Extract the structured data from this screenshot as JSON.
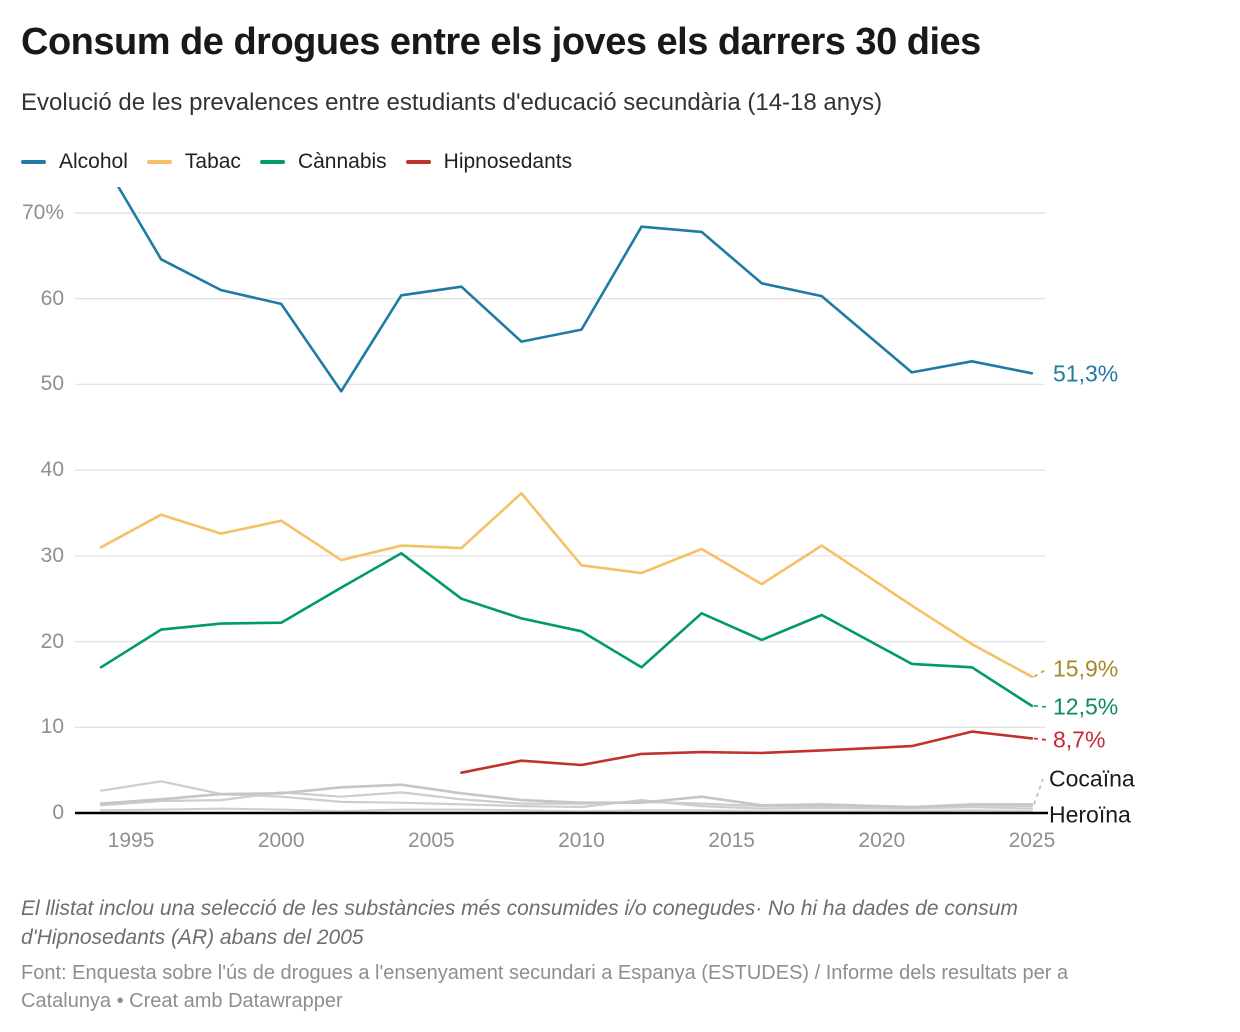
{
  "header": {
    "title": "Consum de drogues entre els joves els darrers 30 dies",
    "subtitle": "Evolució de les prevalences entre estudiants d'educació secundària (14-18 anys)"
  },
  "footer": {
    "note": "El llistat inclou una selecció de les substàncies més consumides i/o conegudes· No hi ha dades de consum\nd'Hipnosedants (AR) abans del 2005",
    "source": "Font: Enquesta sobre l'ús de drogues a l'ensenyament secundari a Espanya (ESTUDES) / Informe dels resultats per a\nCatalunya • Creat amb Datawrapper"
  },
  "colors": {
    "gridline": "#e4e4e4",
    "axis": "#000000",
    "tick_text": "#8f8f8f",
    "title_text": "#191919",
    "subtitle_text": "#333333",
    "footnote_text": "#6e6e6e",
    "source_text": "#8e8e8e"
  },
  "chart_data": {
    "type": "line",
    "title": "Consum de drogues entre els joves els darrers 30 dies",
    "subtitle": "Evolució de les prevalences entre estudiants d'educació secundària (14-18 anys)",
    "unit": "%",
    "x_years": [
      1994,
      1996,
      1998,
      2000,
      2002,
      2004,
      2006,
      2008,
      2010,
      2012,
      2014,
      2016,
      2018,
      2021,
      2023,
      2025
    ],
    "x_ticks": [
      1995,
      2000,
      2005,
      2010,
      2015,
      2020,
      2025
    ],
    "y_ticks": [
      0,
      10,
      20,
      30,
      40,
      50,
      60,
      70
    ],
    "y_tick_suffix_on_max": "%",
    "xlim": [
      1994,
      2025
    ],
    "ylim": [
      0,
      73
    ],
    "grid": true,
    "legend_position": "top",
    "series": [
      {
        "id": "alcohol",
        "name": "Alcohol",
        "color": "#1f7ba4",
        "label_color": "#1f7ba4",
        "end_label": "51,3%",
        "in_legend": true,
        "width": 2.6,
        "values": [
          76.5,
          64.6,
          61.0,
          59.4,
          49.2,
          60.4,
          61.4,
          55.0,
          56.4,
          68.4,
          67.8,
          61.8,
          60.3,
          51.4,
          52.7,
          51.3
        ]
      },
      {
        "id": "tabac",
        "name": "Tabac",
        "color": "#f6c066",
        "label_color": "#a8882a",
        "end_label": "15,9%",
        "in_legend": true,
        "width": 2.6,
        "values": [
          31.0,
          34.8,
          32.6,
          34.1,
          29.5,
          31.2,
          30.9,
          37.3,
          28.9,
          28.0,
          30.8,
          26.7,
          31.2,
          24.2,
          19.7,
          15.9
        ]
      },
      {
        "id": "cannabis",
        "name": "Cànnabis",
        "color": "#029a6d",
        "label_color": "#0d8a5f",
        "end_label": "12,5%",
        "in_legend": true,
        "width": 2.6,
        "values": [
          17.0,
          21.4,
          22.1,
          22.2,
          26.3,
          30.3,
          25.0,
          22.7,
          21.2,
          17.0,
          23.3,
          20.2,
          23.1,
          17.4,
          17.0,
          12.5
        ]
      },
      {
        "id": "hipnosedants",
        "name": "Hipnosedants",
        "color": "#c0332c",
        "label_color": "#c62836",
        "end_label": "8,7%",
        "in_legend": true,
        "width": 2.6,
        "values": [
          null,
          null,
          null,
          null,
          null,
          null,
          4.7,
          6.1,
          5.6,
          6.9,
          7.1,
          7.0,
          7.3,
          7.8,
          9.5,
          8.7
        ]
      },
      {
        "id": "cocaina",
        "name": "Cocaïna",
        "color": "#c6c6c6",
        "label_color": "#1a1a1a",
        "end_label": "Cocaïna",
        "in_legend": false,
        "width": 2.6,
        "values": [
          1.1,
          1.6,
          2.2,
          2.3,
          3.0,
          3.3,
          2.3,
          1.5,
          1.2,
          1.2,
          1.9,
          0.9,
          1.0,
          0.7,
          1.0,
          1.0
        ]
      },
      {
        "id": "altres-1",
        "name": "",
        "color": "#cdcdcd",
        "label_color": null,
        "end_label": null,
        "in_legend": false,
        "width": 2.2,
        "values": [
          2.6,
          3.7,
          2.2,
          1.9,
          1.3,
          1.2,
          1.0,
          0.8,
          0.7,
          1.5,
          0.8,
          0.5,
          0.6,
          0.5,
          0.7,
          0.5
        ]
      },
      {
        "id": "altres-2",
        "name": "",
        "color": "#cdcdcd",
        "label_color": null,
        "end_label": null,
        "in_legend": false,
        "width": 2.2,
        "values": [
          0.9,
          1.4,
          1.5,
          2.4,
          1.9,
          2.4,
          1.6,
          1.1,
          1.1,
          1.3,
          1.1,
          0.8,
          0.8,
          0.7,
          0.9,
          0.8
        ]
      },
      {
        "id": "heroina",
        "name": "Heroïna",
        "color": "#cfcfcf",
        "label_color": "#1a1a1a",
        "end_label": "Heroïna",
        "in_legend": false,
        "width": 2.2,
        "values": [
          0.3,
          0.4,
          0.5,
          0.4,
          0.2,
          0.4,
          0.4,
          0.3,
          0.2,
          0.3,
          0.3,
          0.2,
          0.2,
          0.2,
          0.3,
          0.2
        ]
      }
    ]
  }
}
